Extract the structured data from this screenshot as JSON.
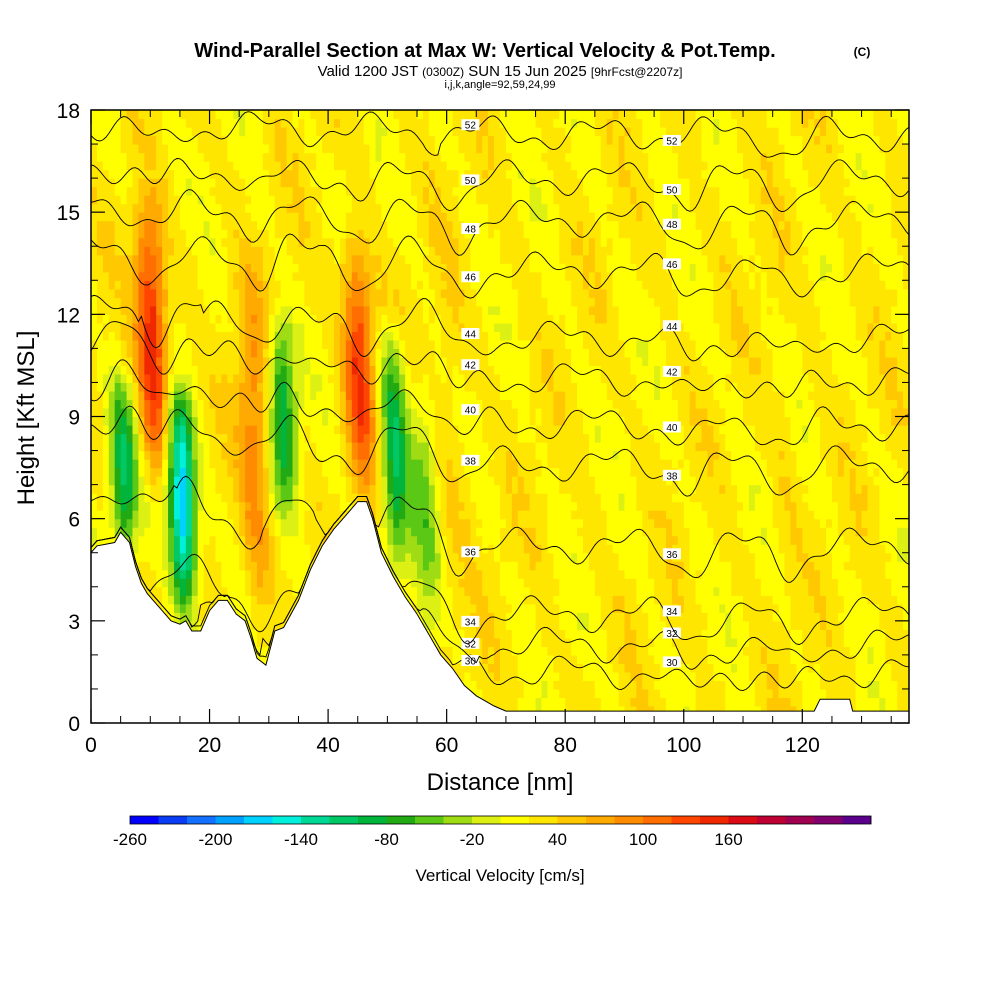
{
  "title": "Wind-Parallel Section at Max W: Vertical Velocity & Pot.Temp.",
  "copyright_mark": "(C)",
  "subtitle_main": "Valid 1200 JST",
  "subtitle_utc": "(0300Z)",
  "subtitle_date": "SUN 15 Jun 2025",
  "subtitle_fcst": "[9hrFcst@2207z]",
  "params": "i,j,k,angle=92,59,24,99",
  "chart_data": {
    "type": "heatmap",
    "xlabel": "Distance [nm]",
    "ylabel": "Height [Kft MSL]",
    "xlim": [
      0,
      138
    ],
    "ylim": [
      0,
      18
    ],
    "x_ticks": [
      0,
      20,
      40,
      60,
      80,
      100,
      120
    ],
    "y_ticks": [
      0,
      3,
      6,
      9,
      12,
      15,
      18
    ],
    "colorbar": {
      "label": "Vertical Velocity [cm/s]",
      "min": -260,
      "step": 20,
      "tick_labels": [
        "-260",
        "-200",
        "-140",
        "-80",
        "-20",
        "40",
        "100",
        "160"
      ],
      "tick_values": [
        -260,
        -200,
        -140,
        -80,
        -20,
        40,
        100,
        160
      ],
      "colors": [
        "#0000ff",
        "#0a3cf5",
        "#1470ff",
        "#00a0ff",
        "#00d2ff",
        "#00f0dc",
        "#00d896",
        "#00c864",
        "#00b43c",
        "#22aa14",
        "#5ac814",
        "#a0dc14",
        "#dcf014",
        "#ffff00",
        "#ffe600",
        "#ffc800",
        "#ffaa00",
        "#ff8c00",
        "#ff6e00",
        "#ff4600",
        "#f02800",
        "#dc0a14",
        "#be0032",
        "#a00050",
        "#82006e",
        "#5a008c"
      ]
    },
    "updraft_cores": [
      {
        "x": 11,
        "bottom": 7.0,
        "top": 18,
        "peak": 160
      },
      {
        "x": 28.5,
        "bottom": 2.5,
        "top": 17,
        "peak": 90
      },
      {
        "x": 46,
        "bottom": 6.5,
        "top": 17,
        "peak": 140
      },
      {
        "x": 62,
        "bottom": 2.0,
        "top": 17,
        "peak": 40
      },
      {
        "x": 101,
        "bottom": 0.8,
        "top": 17,
        "peak": 20
      },
      {
        "x": 118,
        "bottom": 0.5,
        "top": 18,
        "peak": 30
      }
    ],
    "downdraft_cores": [
      {
        "x": 6,
        "bottom": 4.5,
        "top": 12,
        "peak": -100
      },
      {
        "x": 16,
        "bottom": 3.0,
        "top": 12,
        "peak": -200
      },
      {
        "x": 33,
        "bottom": 6.0,
        "top": 14,
        "peak": -100
      },
      {
        "x": 52,
        "bottom": 4.0,
        "top": 14,
        "peak": -110
      },
      {
        "x": 57,
        "bottom": 2.0,
        "top": 13,
        "peak": -40
      }
    ],
    "terrain_profile": [
      [
        0,
        5.0
      ],
      [
        1,
        5.2
      ],
      [
        4,
        5.3
      ],
      [
        5,
        5.6
      ],
      [
        6.5,
        5.3
      ],
      [
        7.5,
        4.6
      ],
      [
        8.5,
        4.1
      ],
      [
        9.5,
        3.8
      ],
      [
        10.5,
        3.6
      ],
      [
        12,
        3.3
      ],
      [
        13.5,
        3.0
      ],
      [
        15,
        2.9
      ],
      [
        16,
        3.0
      ],
      [
        17,
        2.7
      ],
      [
        18.5,
        2.7
      ],
      [
        20,
        3.3
      ],
      [
        21.5,
        3.6
      ],
      [
        23,
        3.6
      ],
      [
        24.5,
        3.2
      ],
      [
        26,
        3.0
      ],
      [
        27,
        2.5
      ],
      [
        28,
        1.9
      ],
      [
        29.5,
        1.7
      ],
      [
        31,
        2.7
      ],
      [
        32.5,
        2.8
      ],
      [
        35,
        3.6
      ],
      [
        37,
        4.5
      ],
      [
        39,
        5.2
      ],
      [
        41,
        5.7
      ],
      [
        43,
        6.1
      ],
      [
        45,
        6.5
      ],
      [
        46.5,
        6.5
      ],
      [
        47.5,
        6.0
      ],
      [
        49,
        5.0
      ],
      [
        51,
        4.3
      ],
      [
        53,
        3.7
      ],
      [
        55,
        3.2
      ],
      [
        57,
        2.6
      ],
      [
        59,
        2.0
      ],
      [
        61,
        1.6
      ],
      [
        63,
        1.1
      ],
      [
        65,
        0.8
      ],
      [
        68,
        0.5
      ],
      [
        70,
        0.35
      ],
      [
        122,
        0.35
      ],
      [
        123,
        0.7
      ],
      [
        128,
        0.7
      ],
      [
        128.5,
        0.35
      ],
      [
        138,
        0.35
      ]
    ],
    "theta_contours": [
      {
        "label": "30",
        "base": 1.5,
        "rise": 0.6
      },
      {
        "label": "32",
        "base": 2.3,
        "rise": 0.8
      },
      {
        "label": "34",
        "base": 3.2,
        "rise": 1.0
      },
      {
        "label": "36",
        "base": 5.2,
        "rise": 1.3
      },
      {
        "label": "38",
        "base": 7.6,
        "rise": 1.2
      },
      {
        "label": "40",
        "base": 8.8,
        "rise": 1.1
      },
      {
        "label": "42",
        "base": 10.1,
        "rise": 1.0
      },
      {
        "label": "44",
        "base": 11.3,
        "rise": 0.8
      },
      {
        "label": "46",
        "base": 13.3,
        "rise": 0.6
      },
      {
        "label": "48",
        "base": 14.8,
        "rise": 0.5
      },
      {
        "label": "50",
        "base": 16.0,
        "rise": 0.4
      },
      {
        "label": "52",
        "base": 17.3,
        "rise": 0.3
      }
    ]
  }
}
